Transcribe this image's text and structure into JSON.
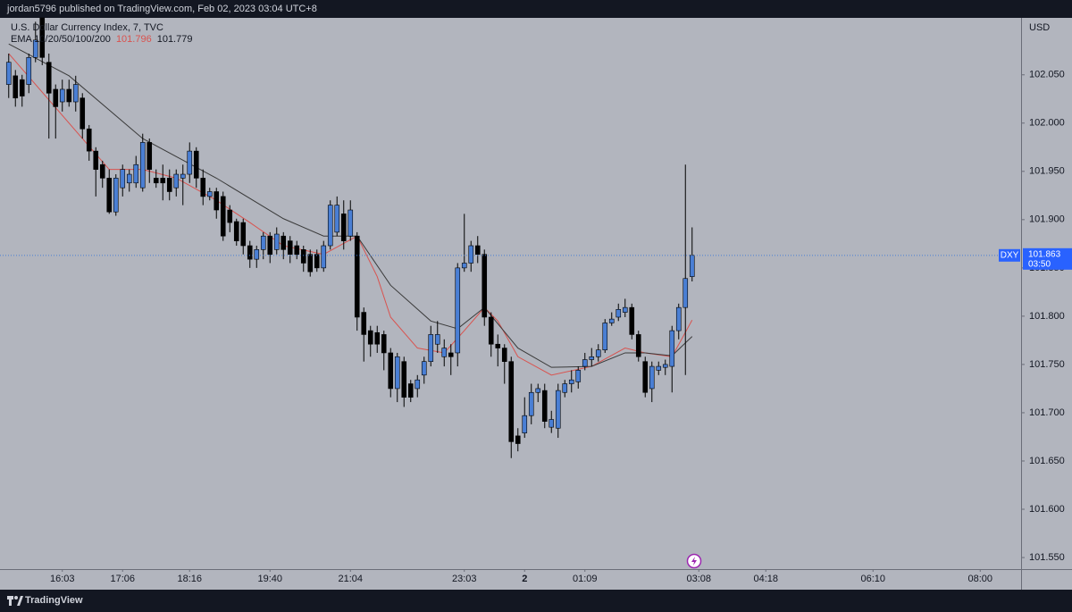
{
  "header": {
    "text": "jordan5796 published on TradingView.com, Feb 02, 2023 03:04 UTC+8"
  },
  "footer": {
    "brand": "TradingView"
  },
  "chart_data": {
    "type": "candlestick",
    "title": "U.S. Dollar Currency Index, 7, TVC",
    "indicator": "EMA 10/20/50/100/200",
    "currency": "USD",
    "symbol": "DXY",
    "countdown": "03:50",
    "up_color": "#4a7fd4",
    "down_color": "#000000",
    "open": [
      102.04,
      102.049,
      102.045,
      102.04,
      102.068,
      102.109,
      102.063,
      102.035,
      102.022,
      102.035,
      102.022,
      102.026,
      101.994,
      101.971,
      101.957,
      101.943,
      101.908,
      101.933,
      101.938,
      101.938,
      101.933,
      101.98,
      101.943,
      101.943,
      101.943,
      101.933,
      101.943,
      101.947,
      101.971,
      101.943,
      101.924,
      101.929,
      101.924,
      101.91,
      101.898,
      101.897,
      101.873,
      101.859,
      101.869,
      101.883,
      101.869,
      101.883,
      101.878,
      101.873,
      101.869,
      101.864,
      101.864,
      101.85,
      101.873,
      101.887,
      101.906,
      101.883,
      101.883,
      101.804,
      101.785,
      101.783,
      101.781,
      101.762,
      101.725,
      101.753,
      101.73,
      101.725,
      101.739,
      101.753,
      101.771,
      101.758,
      101.762,
      101.762,
      101.85,
      101.855,
      101.873,
      101.864,
      101.799,
      101.771,
      101.767,
      101.753,
      101.676,
      101.679,
      101.697,
      101.721,
      101.723,
      101.685,
      101.684,
      101.721,
      101.73,
      101.732,
      101.748,
      101.755,
      101.758,
      101.765,
      101.793,
      101.799,
      101.804,
      101.809,
      101.781,
      101.753,
      101.725,
      101.744,
      101.747,
      101.748,
      101.785,
      101.809,
      101.841
    ],
    "high": [
      102.072,
      102.055,
      102.05,
      102.072,
      102.105,
      102.109,
      102.072,
      102.04,
      102.045,
      102.045,
      102.049,
      102.031,
      101.998,
      101.975,
      101.961,
      101.952,
      101.947,
      101.957,
      101.952,
      101.966,
      101.989,
      101.984,
      101.952,
      101.957,
      101.952,
      101.952,
      101.957,
      101.98,
      101.975,
      101.952,
      101.933,
      101.933,
      101.929,
      101.915,
      101.901,
      101.901,
      101.878,
      101.873,
      101.887,
      101.887,
      101.892,
      101.887,
      101.883,
      101.878,
      101.873,
      101.869,
      101.869,
      101.878,
      101.92,
      101.924,
      101.92,
      101.92,
      101.887,
      101.809,
      101.79,
      101.79,
      101.785,
      101.767,
      101.762,
      101.758,
      101.734,
      101.739,
      101.758,
      101.79,
      101.795,
      101.776,
      101.771,
      101.855,
      101.906,
      101.878,
      101.883,
      101.869,
      101.804,
      101.781,
      101.771,
      101.758,
      101.684,
      101.716,
      101.73,
      101.73,
      101.73,
      101.702,
      101.73,
      101.734,
      101.744,
      101.748,
      101.762,
      101.767,
      101.771,
      101.797,
      101.804,
      101.813,
      101.818,
      101.813,
      101.785,
      101.758,
      101.753,
      101.753,
      101.755,
      101.79,
      101.813,
      101.957,
      101.892
    ],
    "low": [
      102.026,
      102.017,
      102.017,
      102.031,
      102.063,
      102.06,
      101.984,
      101.984,
      102.012,
      102.017,
      102.012,
      101.984,
      101.961,
      101.924,
      101.933,
      101.906,
      101.904,
      101.924,
      101.929,
      101.933,
      101.929,
      101.938,
      101.933,
      101.92,
      101.92,
      101.924,
      101.915,
      101.938,
      101.933,
      101.915,
      101.92,
      101.901,
      101.878,
      101.887,
      101.873,
      101.864,
      101.85,
      101.85,
      101.859,
      101.855,
      101.864,
      101.859,
      101.855,
      101.859,
      101.846,
      101.841,
      101.846,
      101.846,
      101.869,
      101.883,
      101.869,
      101.878,
      101.785,
      101.753,
      101.758,
      101.762,
      101.744,
      101.716,
      101.711,
      101.706,
      101.711,
      101.716,
      101.73,
      101.748,
      101.762,
      101.748,
      101.739,
      101.748,
      101.846,
      101.846,
      101.855,
      101.79,
      101.758,
      101.748,
      101.73,
      101.653,
      101.66,
      101.674,
      101.688,
      101.711,
      101.684,
      101.679,
      101.674,
      101.716,
      101.721,
      101.725,
      101.744,
      101.748,
      101.753,
      101.762,
      101.79,
      101.795,
      101.799,
      101.776,
      101.753,
      101.716,
      101.711,
      101.739,
      101.739,
      101.721,
      101.776,
      101.739,
      101.836
    ],
    "close": [
      102.063,
      102.026,
      102.028,
      102.068,
      102.086,
      102.068,
      102.031,
      102.017,
      102.035,
      102.022,
      102.04,
      101.994,
      101.971,
      101.952,
      101.943,
      101.908,
      101.943,
      101.952,
      101.947,
      101.957,
      101.98,
      101.952,
      101.938,
      101.938,
      101.929,
      101.947,
      101.947,
      101.971,
      101.943,
      101.924,
      101.929,
      101.91,
      101.883,
      101.897,
      101.878,
      101.873,
      101.859,
      101.869,
      101.883,
      101.864,
      101.885,
      101.869,
      101.864,
      101.864,
      101.855,
      101.846,
      101.85,
      101.873,
      101.915,
      101.915,
      101.878,
      101.91,
      101.799,
      101.781,
      101.771,
      101.771,
      101.762,
      101.725,
      101.758,
      101.716,
      101.716,
      101.734,
      101.753,
      101.781,
      101.781,
      101.767,
      101.758,
      101.85,
      101.855,
      101.873,
      101.864,
      101.799,
      101.771,
      101.767,
      101.753,
      101.67,
      101.668,
      101.697,
      101.721,
      101.725,
      101.691,
      101.693,
      101.723,
      101.73,
      101.734,
      101.744,
      101.755,
      101.758,
      101.765,
      101.793,
      101.797,
      101.807,
      101.809,
      101.781,
      101.758,
      101.721,
      101.748,
      101.748,
      101.75,
      101.785,
      101.809,
      101.839,
      101.863
    ],
    "lines": [
      {
        "color": "#d9534f",
        "x": [
          0,
          15,
          20,
          25,
          31,
          36,
          41,
          47,
          52,
          55,
          57,
          61,
          65,
          68,
          71,
          73,
          76,
          81,
          87,
          92,
          95,
          99,
          102
        ],
        "values": [
          102.072,
          101.952,
          101.952,
          101.943,
          101.92,
          101.897,
          101.873,
          101.864,
          101.883,
          101.841,
          101.799,
          101.767,
          101.762,
          101.785,
          101.809,
          101.795,
          101.758,
          101.739,
          101.748,
          101.767,
          101.762,
          101.758,
          101.796
        ]
      },
      {
        "color": "#3a3a3a",
        "x": [
          0,
          9,
          20,
          31,
          41,
          47,
          52,
          57,
          63,
          67,
          71,
          76,
          81,
          87,
          92,
          95,
          99,
          102
        ],
        "values": [
          102.082,
          102.049,
          101.984,
          101.943,
          101.901,
          101.883,
          101.883,
          101.832,
          101.795,
          101.787,
          101.809,
          101.767,
          101.747,
          101.748,
          101.762,
          101.762,
          101.759,
          101.779
        ]
      }
    ],
    "xlim": [
      -1.3,
      151.1
    ],
    "xticks": [
      {
        "value": 8,
        "label": "16:03"
      },
      {
        "value": 17,
        "label": "17:06"
      },
      {
        "value": 27,
        "label": "18:16"
      },
      {
        "value": 39,
        "label": "19:40"
      },
      {
        "value": 51,
        "label": "21:04"
      },
      {
        "value": 68,
        "label": "23:03"
      },
      {
        "value": 77,
        "label": "2"
      },
      {
        "value": 86,
        "label": "01:09"
      },
      {
        "value": 103,
        "label": "03:08"
      },
      {
        "value": 113,
        "label": "04:18"
      },
      {
        "value": 129,
        "label": "06:10"
      },
      {
        "value": 145,
        "label": "08:00"
      }
    ],
    "ylim": [
      101.538,
      102.109
    ],
    "yticks": [
      {
        "value": 101.55,
        "label": "101.550"
      },
      {
        "value": 101.6,
        "label": "101.600"
      },
      {
        "value": 101.65,
        "label": "101.650"
      },
      {
        "value": 101.7,
        "label": "101.700"
      },
      {
        "value": 101.75,
        "label": "101.750"
      },
      {
        "value": 101.8,
        "label": "101.800"
      },
      {
        "value": 101.85,
        "label": "101.850"
      },
      {
        "value": 101.9,
        "label": "101.900"
      },
      {
        "value": 101.95,
        "label": "101.950"
      },
      {
        "value": 102.0,
        "label": "102.000"
      },
      {
        "value": 102.05,
        "label": "102.050"
      }
    ],
    "grid": false
  }
}
